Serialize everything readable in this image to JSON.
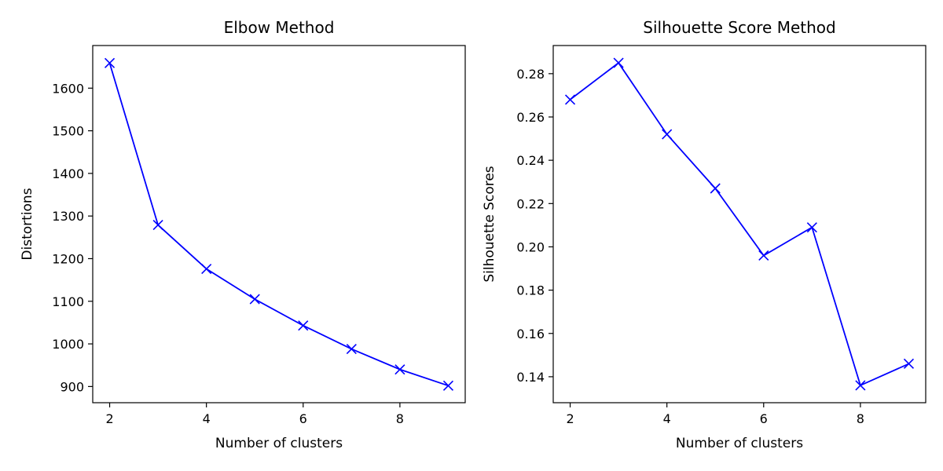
{
  "chart_data": [
    {
      "type": "line",
      "title": "Elbow Method",
      "xlabel": "Number of clusters",
      "ylabel": "Distortions",
      "x": [
        2,
        3,
        4,
        5,
        6,
        7,
        8,
        9
      ],
      "series": [
        {
          "values": [
            1659,
            1279,
            1176,
            1105,
            1043,
            988,
            940,
            902
          ],
          "color": "#0000ff",
          "marker": "x"
        }
      ],
      "xlim": [
        1.65,
        9.35
      ],
      "ylim": [
        862,
        1700
      ],
      "xticks": [
        2,
        4,
        6,
        8
      ],
      "yticks": [
        900,
        1000,
        1100,
        1200,
        1300,
        1400,
        1500,
        1600
      ],
      "grid": false
    },
    {
      "type": "line",
      "title": "Silhouette Score Method",
      "xlabel": "Number of clusters",
      "ylabel": "Silhouette Scores",
      "x": [
        2,
        3,
        4,
        5,
        6,
        7,
        8,
        9
      ],
      "series": [
        {
          "values": [
            0.268,
            0.285,
            0.252,
            0.227,
            0.196,
            0.209,
            0.136,
            0.146
          ],
          "color": "#0000ff",
          "marker": "x"
        }
      ],
      "xlim": [
        1.65,
        9.35
      ],
      "ylim": [
        0.128,
        0.293
      ],
      "xticks": [
        2,
        4,
        6,
        8
      ],
      "yticks": [
        0.14,
        0.16,
        0.18,
        0.2,
        0.22,
        0.24,
        0.26,
        0.28
      ],
      "ytick_labels": [
        "0.14",
        "0.16",
        "0.18",
        "0.20",
        "0.22",
        "0.24",
        "0.26",
        "0.28"
      ],
      "grid": false
    }
  ]
}
